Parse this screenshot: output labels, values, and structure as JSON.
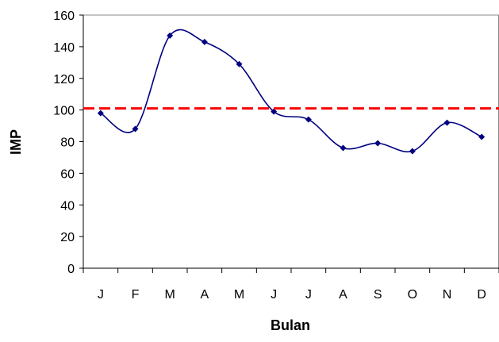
{
  "chart_data": {
    "type": "line",
    "xlabel": "Bulan",
    "ylabel": "IMP",
    "categories": [
      "J",
      "F",
      "M",
      "A",
      "M",
      "J",
      "J",
      "A",
      "S",
      "O",
      "N",
      "D"
    ],
    "series": [
      {
        "values": [
          98,
          88,
          147,
          143,
          129,
          99,
          94,
          76,
          79,
          74,
          92,
          83
        ],
        "color": "#000080",
        "smooth": true,
        "marker": "diamond"
      }
    ],
    "reference_line": {
      "value": 101,
      "color": "#ff0000",
      "style": "dashed"
    },
    "ylim": [
      0,
      160
    ],
    "yticks": [
      0,
      20,
      40,
      60,
      80,
      100,
      120,
      140,
      160
    ],
    "grid": false,
    "legend": "none"
  }
}
